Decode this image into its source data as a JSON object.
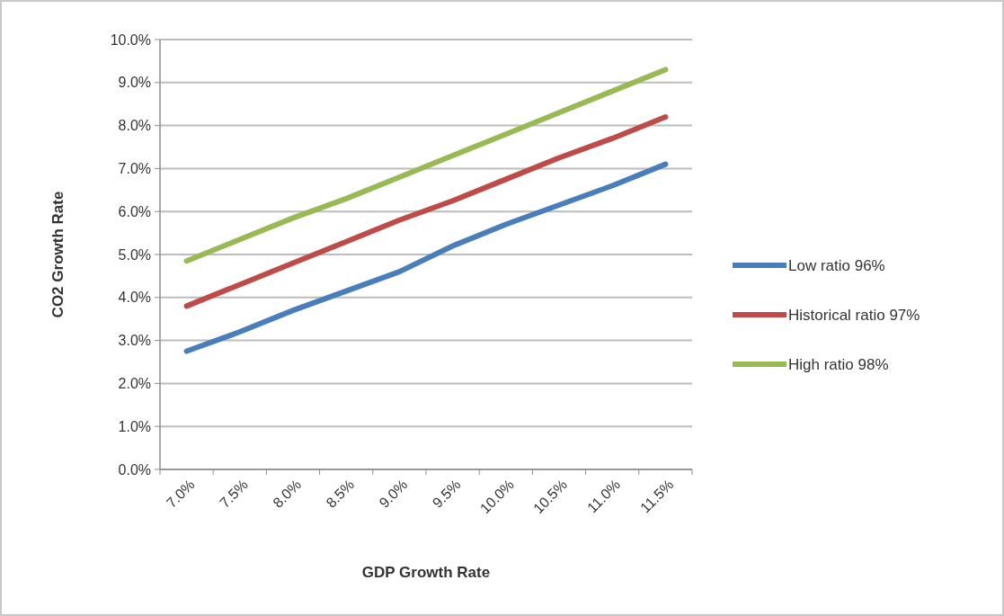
{
  "chart_data": {
    "type": "line",
    "xlabel": "GDP Growth Rate",
    "ylabel": "CO2 Growth Rate",
    "categories": [
      "7.0%",
      "7.5%",
      "8.0%",
      "8.5%",
      "9.0%",
      "9.5%",
      "10.0%",
      "10.5%",
      "11.0%",
      "11.5%"
    ],
    "series": [
      {
        "name": "Low ratio 96%",
        "color": "#4a7ebb",
        "values": [
          2.75,
          3.2,
          3.7,
          4.15,
          4.6,
          5.2,
          5.7,
          6.15,
          6.6,
          7.1
        ]
      },
      {
        "name": "Historical ratio 97%",
        "color": "#be4b48",
        "values": [
          3.8,
          4.3,
          4.8,
          5.3,
          5.8,
          6.25,
          6.75,
          7.25,
          7.7,
          8.2
        ]
      },
      {
        "name": "High ratio 98%",
        "color": "#98b954",
        "values": [
          4.85,
          5.35,
          5.85,
          6.3,
          6.8,
          7.3,
          7.8,
          8.3,
          8.8,
          9.3
        ]
      }
    ],
    "ylim": [
      0,
      10
    ],
    "yticks": [
      {
        "value": 0,
        "label": "0.0%"
      },
      {
        "value": 1,
        "label": "1.0%"
      },
      {
        "value": 2,
        "label": "2.0%"
      },
      {
        "value": 3,
        "label": "3.0%"
      },
      {
        "value": 4,
        "label": "4.0%"
      },
      {
        "value": 5,
        "label": "5.0%"
      },
      {
        "value": 6,
        "label": "6.0%"
      },
      {
        "value": 7,
        "label": "7.0%"
      },
      {
        "value": 8,
        "label": "8.0%"
      },
      {
        "value": 9,
        "label": "9.0%"
      },
      {
        "value": 10,
        "label": "10.0%"
      }
    ],
    "grid": "y",
    "legend": "right",
    "marker": "none",
    "line_style": "solid"
  }
}
